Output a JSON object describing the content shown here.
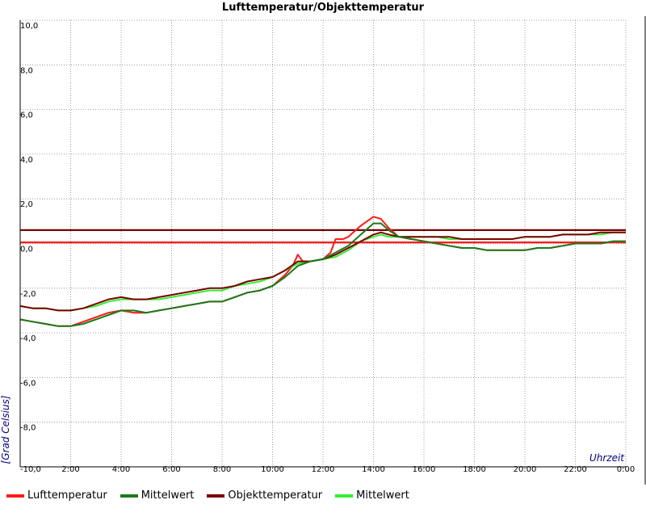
{
  "chart_data": {
    "type": "line",
    "title": "Lufttemperatur/Objekttemperatur",
    "xlabel": "Uhrzeit",
    "ylabel": "[Grad Celsius]",
    "xlim": [
      0,
      24
    ],
    "ylim": [
      -10,
      10
    ],
    "grid": true,
    "legend_position": "bottom",
    "y_ticks": [
      "10,0",
      "8,0",
      "6,0",
      "4,0",
      "2,0",
      "0,0",
      "-2,0",
      "-4,0",
      "-6,0",
      "-8,0",
      "-10,0"
    ],
    "y_tick_values": [
      10,
      8,
      6,
      4,
      2,
      0,
      -2,
      -4,
      -6,
      -8,
      -10
    ],
    "x_ticks": [
      "2:00",
      "4:00",
      "6:00",
      "8:00",
      "10:00",
      "12:00",
      "14:00",
      "16:00",
      "18:00",
      "20:00",
      "22:00",
      "0:00"
    ],
    "x_tick_values": [
      2,
      4,
      6,
      8,
      10,
      12,
      14,
      16,
      18,
      20,
      22,
      24
    ],
    "series": [
      {
        "name": "Lufttemperatur",
        "color": "#ff1a1a",
        "x": [
          0,
          0.5,
          1,
          1.5,
          2,
          2.5,
          3,
          3.5,
          4,
          4.5,
          5,
          5.5,
          6,
          6.5,
          7,
          7.5,
          8,
          8.5,
          9,
          9.5,
          10,
          10.5,
          10.8,
          11,
          11.2,
          11.5,
          12,
          12.3,
          12.5,
          12.8,
          13,
          13.5,
          14,
          14.3,
          14.6,
          15,
          15.5,
          16,
          16.5,
          17,
          17.5,
          18,
          18.5,
          19,
          19.5,
          20,
          20.5,
          21,
          21.5,
          22,
          22.5,
          23,
          23.5,
          24
        ],
        "y": [
          -3.4,
          -3.5,
          -3.6,
          -3.7,
          -3.7,
          -3.5,
          -3.3,
          -3.1,
          -3.0,
          -3.1,
          -3.1,
          -3.0,
          -2.9,
          -2.8,
          -2.7,
          -2.6,
          -2.6,
          -2.4,
          -2.2,
          -2.1,
          -1.9,
          -1.4,
          -1.0,
          -0.5,
          -0.8,
          -0.8,
          -0.7,
          -0.4,
          0.2,
          0.2,
          0.3,
          0.8,
          1.2,
          1.1,
          0.7,
          0.3,
          0.2,
          0.1,
          0.0,
          -0.1,
          -0.2,
          -0.2,
          -0.3,
          -0.3,
          -0.3,
          -0.3,
          -0.2,
          -0.2,
          -0.1,
          0.0,
          0.0,
          0.0,
          0.1,
          0.1
        ]
      },
      {
        "name": "Mittelwert",
        "color": "#1a7a1a",
        "x": [
          0,
          0.5,
          1,
          1.5,
          2,
          2.5,
          3,
          3.5,
          4,
          4.5,
          5,
          5.5,
          6,
          6.5,
          7,
          7.5,
          8,
          8.5,
          9,
          9.5,
          10,
          10.5,
          11,
          11.5,
          12,
          12.5,
          13,
          13.5,
          14,
          14.3,
          14.6,
          15,
          15.5,
          16,
          16.5,
          17,
          17.5,
          18,
          18.5,
          19,
          19.5,
          20,
          20.5,
          21,
          21.5,
          22,
          22.5,
          23,
          23.5,
          24
        ],
        "y": [
          -3.4,
          -3.5,
          -3.6,
          -3.7,
          -3.7,
          -3.6,
          -3.4,
          -3.2,
          -3.0,
          -3.0,
          -3.1,
          -3.0,
          -2.9,
          -2.8,
          -2.7,
          -2.6,
          -2.6,
          -2.4,
          -2.2,
          -2.1,
          -1.9,
          -1.5,
          -1.0,
          -0.8,
          -0.7,
          -0.4,
          -0.1,
          0.4,
          0.9,
          0.9,
          0.6,
          0.3,
          0.2,
          0.1,
          0.0,
          -0.1,
          -0.2,
          -0.2,
          -0.3,
          -0.3,
          -0.3,
          -0.3,
          -0.2,
          -0.2,
          -0.1,
          0.0,
          0.0,
          0.0,
          0.1,
          0.1
        ]
      },
      {
        "name": "Objekttemperatur",
        "color": "#7a0000",
        "x": [
          0,
          0.5,
          1,
          1.5,
          2,
          2.5,
          3,
          3.5,
          4,
          4.5,
          5,
          5.5,
          6,
          6.5,
          7,
          7.5,
          8,
          8.5,
          9,
          9.5,
          10,
          10.5,
          11,
          11.5,
          12,
          12.5,
          13,
          13.5,
          14,
          14.3,
          14.6,
          15,
          15.5,
          16,
          16.5,
          17,
          17.5,
          18,
          18.5,
          19,
          19.5,
          20,
          20.5,
          21,
          21.5,
          22,
          22.5,
          23,
          23.5,
          24
        ],
        "y": [
          -2.8,
          -2.9,
          -2.9,
          -3.0,
          -3.0,
          -2.9,
          -2.7,
          -2.5,
          -2.4,
          -2.5,
          -2.5,
          -2.4,
          -2.3,
          -2.2,
          -2.1,
          -2.0,
          -2.0,
          -1.9,
          -1.7,
          -1.6,
          -1.5,
          -1.2,
          -0.8,
          -0.8,
          -0.7,
          -0.5,
          -0.2,
          0.1,
          0.4,
          0.5,
          0.4,
          0.3,
          0.3,
          0.3,
          0.3,
          0.3,
          0.2,
          0.2,
          0.2,
          0.2,
          0.2,
          0.3,
          0.3,
          0.3,
          0.4,
          0.4,
          0.4,
          0.5,
          0.5,
          0.5
        ]
      },
      {
        "name": "Mittelwert",
        "color": "#33ee33",
        "x": [
          0,
          0.5,
          1,
          1.5,
          2,
          2.5,
          3,
          3.5,
          4,
          4.5,
          5,
          5.5,
          6,
          6.5,
          7,
          7.5,
          8,
          8.5,
          9,
          9.5,
          10,
          10.5,
          11,
          11.5,
          12,
          12.5,
          13,
          13.5,
          14,
          14.3,
          14.6,
          15,
          15.5,
          16,
          16.5,
          17,
          17.5,
          18,
          18.5,
          19,
          19.5,
          20,
          20.5,
          21,
          21.5,
          22,
          22.5,
          23,
          23.5,
          24
        ],
        "y": [
          -2.8,
          -2.9,
          -2.9,
          -3.0,
          -3.0,
          -2.9,
          -2.8,
          -2.6,
          -2.5,
          -2.5,
          -2.5,
          -2.5,
          -2.4,
          -2.3,
          -2.2,
          -2.1,
          -2.1,
          -1.9,
          -1.8,
          -1.7,
          -1.5,
          -1.2,
          -0.9,
          -0.8,
          -0.7,
          -0.6,
          -0.3,
          0.1,
          0.3,
          0.4,
          0.3,
          0.3,
          0.3,
          0.3,
          0.3,
          0.2,
          0.2,
          0.2,
          0.2,
          0.2,
          0.2,
          0.3,
          0.3,
          0.3,
          0.4,
          0.4,
          0.4,
          0.4,
          0.5,
          0.5
        ]
      }
    ],
    "reference_lines": [
      {
        "color": "#7a0000",
        "y": 0.6
      },
      {
        "color": "#ff1a1a",
        "y": 0.05
      }
    ]
  }
}
